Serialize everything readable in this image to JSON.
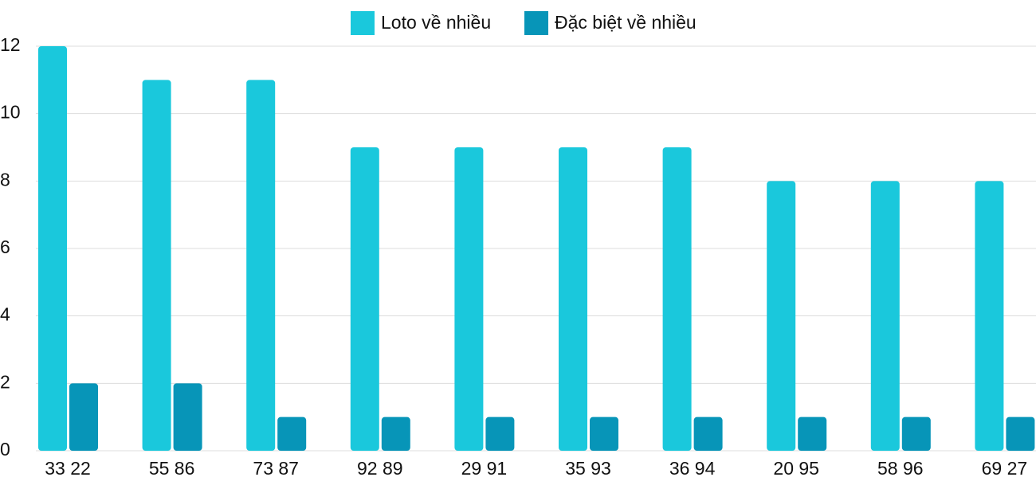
{
  "chart_data": {
    "type": "bar",
    "categories": [
      "33 22",
      "55 86",
      "73 87",
      "92 89",
      "29 91",
      "35 93",
      "36 94",
      "20 95",
      "58 96",
      "69 27"
    ],
    "series": [
      {
        "name": "Loto về nhiều",
        "color": "#1ac8dc",
        "values": [
          12,
          11,
          11,
          9,
          9,
          9,
          9,
          8,
          8,
          8
        ]
      },
      {
        "name": "Đặc biệt về nhiều",
        "color": "#0795b8",
        "values": [
          2,
          2,
          1,
          1,
          1,
          1,
          1,
          1,
          1,
          1
        ]
      }
    ],
    "ylim": [
      0,
      12
    ],
    "yticks": [
      0,
      2,
      4,
      6,
      8,
      10,
      12
    ],
    "grid": true,
    "legend": "top"
  }
}
